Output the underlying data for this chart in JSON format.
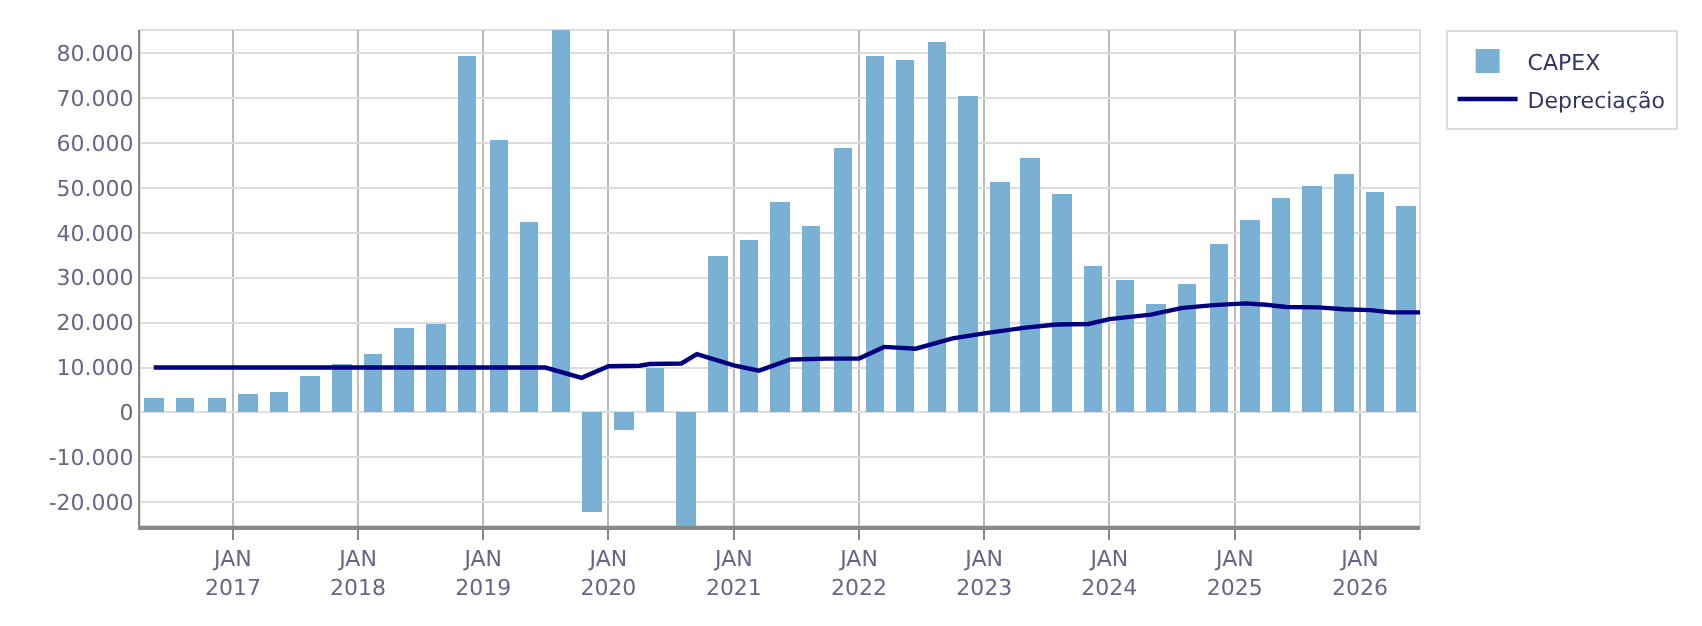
{
  "chart_data": {
    "type": "bar",
    "x": [
      "2016-05-15",
      "2016-08-15",
      "2016-11-15",
      "2017-02-15",
      "2017-05-15",
      "2017-08-15",
      "2017-11-15",
      "2018-02-15",
      "2018-05-15",
      "2018-08-15",
      "2018-11-15",
      "2019-02-15",
      "2019-05-15",
      "2019-08-15",
      "2019-11-15",
      "2020-02-15",
      "2020-05-15",
      "2020-08-15",
      "2020-11-15",
      "2021-02-15",
      "2021-05-15",
      "2021-08-15",
      "2021-11-15",
      "2022-02-15",
      "2022-05-15",
      "2022-08-15",
      "2022-11-15",
      "2023-02-15",
      "2023-05-15",
      "2023-08-15",
      "2023-11-15",
      "2024-02-15",
      "2024-05-15",
      "2024-08-15",
      "2024-11-15",
      "2025-02-15",
      "2025-05-15",
      "2025-08-15",
      "2025-11-15",
      "2026-02-15",
      "2026-05-15"
    ],
    "series": [
      {
        "name": "CAPEX",
        "color": "#7ab0d3",
        "values": [
          3000,
          3000,
          3000,
          3900,
          4400,
          8200,
          10700,
          12800,
          18700,
          19500,
          79500,
          60500,
          42300,
          85200,
          -22200,
          -4100,
          9800,
          -25300,
          34700,
          38500,
          47000,
          41500,
          58800,
          79500,
          78600,
          82400,
          70600,
          51200,
          56700,
          48700,
          32600,
          29300,
          24200,
          28800,
          37700,
          42800,
          47800,
          50400,
          53300,
          49100,
          46100
        ]
      },
      {
        "name": "Depreciação",
        "type": "line",
        "color": "#000080",
        "x": [
          "2016-05-15",
          "2019-07-01",
          "2019-10-15",
          "2020-01-01",
          "2020-04-01",
          "2020-05-01",
          "2020-08-01",
          "2020-09-15",
          "2021-01-01",
          "2021-03-15",
          "2021-06-15",
          "2021-10-01",
          "2022-01-01",
          "2022-03-15",
          "2022-06-15",
          "2022-10-01",
          "2023-01-01",
          "2023-05-01",
          "2023-08-01",
          "2023-11-01",
          "2024-01-01",
          "2024-05-01",
          "2024-08-01",
          "2024-11-01",
          "2025-02-01",
          "2025-04-01",
          "2025-06-01",
          "2025-09-01",
          "2025-11-15",
          "2026-02-01",
          "2026-04-01",
          "2026-06-25"
        ],
        "values": [
          10000,
          10000,
          7700,
          10300,
          10400,
          10800,
          10900,
          13000,
          10500,
          9300,
          11800,
          12000,
          12000,
          14600,
          14200,
          16500,
          17600,
          18900,
          19600,
          19700,
          20800,
          21800,
          23300,
          23900,
          24300,
          24000,
          23500,
          23400,
          23000,
          22800,
          22300,
          22300
        ]
      }
    ],
    "xlim": [
      "2016-04-05",
      "2026-06-25"
    ],
    "xticks": [
      {
        "value": "2017-01-01",
        "label": "JAN\n2017"
      },
      {
        "value": "2018-01-01",
        "label": "JAN\n2018"
      },
      {
        "value": "2019-01-01",
        "label": "JAN\n2019"
      },
      {
        "value": "2020-01-01",
        "label": "JAN\n2020"
      },
      {
        "value": "2021-01-01",
        "label": "JAN\n2021"
      },
      {
        "value": "2022-01-01",
        "label": "JAN\n2022"
      },
      {
        "value": "2023-01-01",
        "label": "JAN\n2023"
      },
      {
        "value": "2024-01-01",
        "label": "JAN\n2024"
      },
      {
        "value": "2025-01-01",
        "label": "JAN\n2025"
      },
      {
        "value": "2026-01-01",
        "label": "JAN\n2026"
      }
    ],
    "ylim": [
      -25300,
      85200
    ],
    "yticks": [
      {
        "value": -20000,
        "label": "-20.000"
      },
      {
        "value": -10000,
        "label": "-10.000"
      },
      0,
      {
        "value": 10000,
        "label": "10.000"
      },
      {
        "value": 20000,
        "label": "20.000"
      },
      {
        "value": 30000,
        "label": "30.000"
      },
      {
        "value": 40000,
        "label": "40.000"
      },
      {
        "value": 50000,
        "label": "50.000"
      },
      {
        "value": 60000,
        "label": "60.000"
      },
      {
        "value": 70000,
        "label": "70.000"
      },
      {
        "value": 80000,
        "label": "80.000"
      }
    ],
    "grid": true,
    "legend": "top right",
    "line_style": "solid",
    "marker": "none"
  }
}
